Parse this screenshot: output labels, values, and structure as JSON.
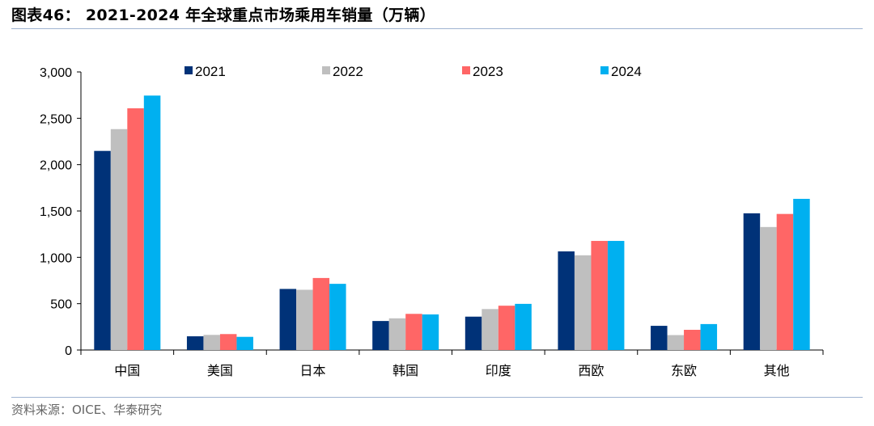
{
  "figure": {
    "title": "图表46： 2021-2024 年全球重点市场乘用车销量（万辆）",
    "source": "资料来源：OICE、华泰研究",
    "rule_color": "#9fb3d1"
  },
  "chart_data": {
    "type": "bar",
    "title": "",
    "xlabel": "",
    "ylabel": "",
    "categories": [
      "中国",
      "美国",
      "日本",
      "韩国",
      "印度",
      "西欧",
      "东欧",
      "其他"
    ],
    "series": [
      {
        "name": "2021",
        "color": "#003278",
        "values": [
          2148,
          148,
          659,
          313,
          360,
          1064,
          261,
          1475
        ]
      },
      {
        "name": "2022",
        "color": "#bfbfbf",
        "values": [
          2383,
          163,
          650,
          342,
          442,
          1022,
          161,
          1327
        ]
      },
      {
        "name": "2023",
        "color": "#ff6666",
        "values": [
          2608,
          172,
          777,
          390,
          478,
          1177,
          218,
          1468
        ]
      },
      {
        "name": "2024",
        "color": "#00b0f0",
        "values": [
          2745,
          142,
          714,
          384,
          498,
          1177,
          280,
          1631
        ]
      }
    ],
    "ylim": [
      0,
      3000
    ],
    "yticks": [
      0,
      500,
      1000,
      1500,
      2000,
      2500,
      3000
    ],
    "ytick_labels": [
      "0",
      "500",
      "1,000",
      "1,500",
      "2,000",
      "2,500",
      "3,000"
    ],
    "grid": false,
    "legend_position": "top"
  }
}
